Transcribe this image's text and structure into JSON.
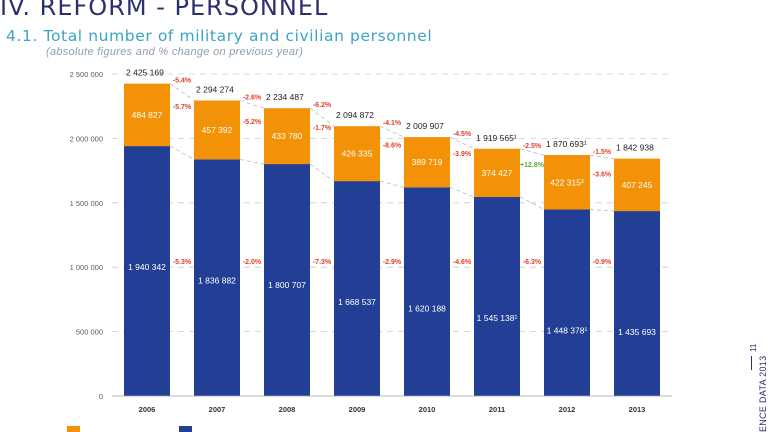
{
  "page": {
    "title": "IV. REFORM - PERSONNEL",
    "section_title": "4.1. Total number of military and civilian personnel",
    "subtitle": "(absolute figures and % change on previous year)",
    "side_caption": "ENCE DATA 2013",
    "page_number": "11"
  },
  "colors": {
    "military": "#233f95",
    "civilian": "#f39206",
    "title": "#2a2f6e",
    "accent": "#3ba3c8",
    "negative": "#e0422a",
    "positive": "#5aa83c"
  },
  "chart_data": {
    "type": "bar",
    "stacked": true,
    "title": "4.1. Total number of military and civilian personnel",
    "subtitle": "(absolute figures and % change on previous year)",
    "categories": [
      "2006",
      "2007",
      "2008",
      "2009",
      "2010",
      "2011",
      "2012",
      "2013"
    ],
    "ylim": [
      0,
      2500000
    ],
    "yticks": [
      0,
      500000,
      1000000,
      1500000,
      2000000,
      2500000
    ],
    "ytick_labels": [
      "0",
      "500 000",
      "1 000 000",
      "1 500 000",
      "2 000 000",
      "2 500 000"
    ],
    "grid": "dashed-horizontal",
    "legend": "bottom-left",
    "series": [
      {
        "values": [
          1940342,
          1836882,
          1800707,
          1668537,
          1620188,
          1545138,
          1448378,
          1435693
        ],
        "labels": [
          "1 940 342",
          "1 836 882",
          "1 800 707",
          "1 668 537",
          "1 620 188",
          "1 545 138¹",
          "1 448 378¹",
          "1 435 693"
        ],
        "changes": [
          "-5.3%",
          "-2.0%",
          "-7.3%",
          "-2.9%",
          "-4.6%",
          "-6.3%",
          "-0.9%"
        ]
      },
      {
        "values": [
          484827,
          457392,
          433780,
          426335,
          389719,
          374427,
          422315,
          407245
        ],
        "labels": [
          "484 827",
          "457 392",
          "433 780",
          "426 335",
          "389 719",
          "374 427",
          "422 315²",
          "407 245"
        ],
        "changes": [
          "-5.7%",
          "-5.2%",
          "-1.7%",
          "-8.6%",
          "-3.9%",
          "+12.8%",
          "-3.6%"
        ]
      }
    ],
    "totals": {
      "values": [
        2425169,
        2294274,
        2234487,
        2094872,
        2009907,
        1919565,
        1870693,
        1842938
      ],
      "labels": [
        "2 425 169",
        "2 294 274",
        "2 234 487",
        "2 094 872",
        "2 009 907",
        "1 919 565¹",
        "1 870 693¹",
        "1 842 938"
      ],
      "changes": [
        "-5.4%",
        "-2.6%",
        "-6.2%",
        "-4.1%",
        "-4.5%",
        "-2.5%",
        "-1.5%"
      ]
    }
  }
}
